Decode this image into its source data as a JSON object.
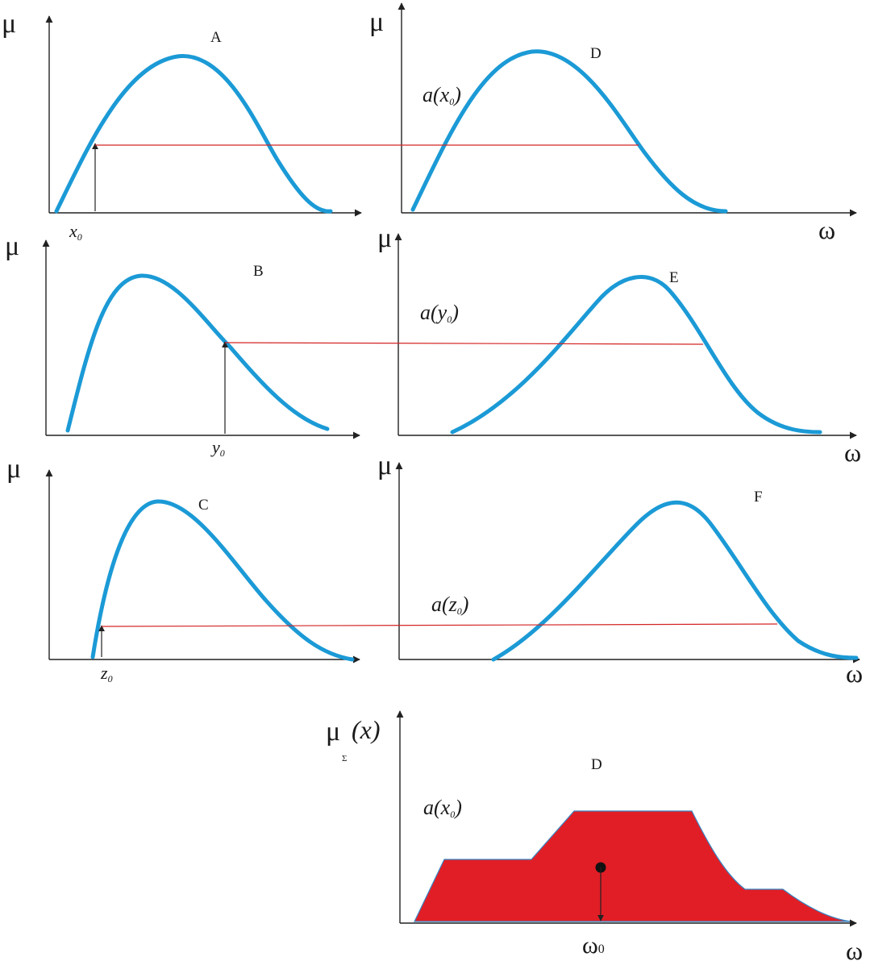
{
  "colors": {
    "curve": "#1b9ad6",
    "level_line": "#d42424",
    "aggregate_fill": "#e11e26",
    "axis": "#222222"
  },
  "axes": {
    "mu": "μ",
    "omega": "ω",
    "mu_sigma": "μ",
    "sigma": "Σ",
    "x_of": "(x)",
    "omega_0": "ω",
    "omega_0_sub": "0"
  },
  "inputs": {
    "x0": "x",
    "x0_sub": "0",
    "y0": "y",
    "y0_sub": "0",
    "z0": "z",
    "z0_sub": "0"
  },
  "sets": {
    "A": "A",
    "B": "B",
    "C": "C",
    "D": "D",
    "E": "E",
    "F": "F",
    "result": "D"
  },
  "annotations": {
    "a_prefix": "a(",
    "x": "x",
    "y": "y",
    "z": "z",
    "sub": "0",
    "close": ")"
  }
}
